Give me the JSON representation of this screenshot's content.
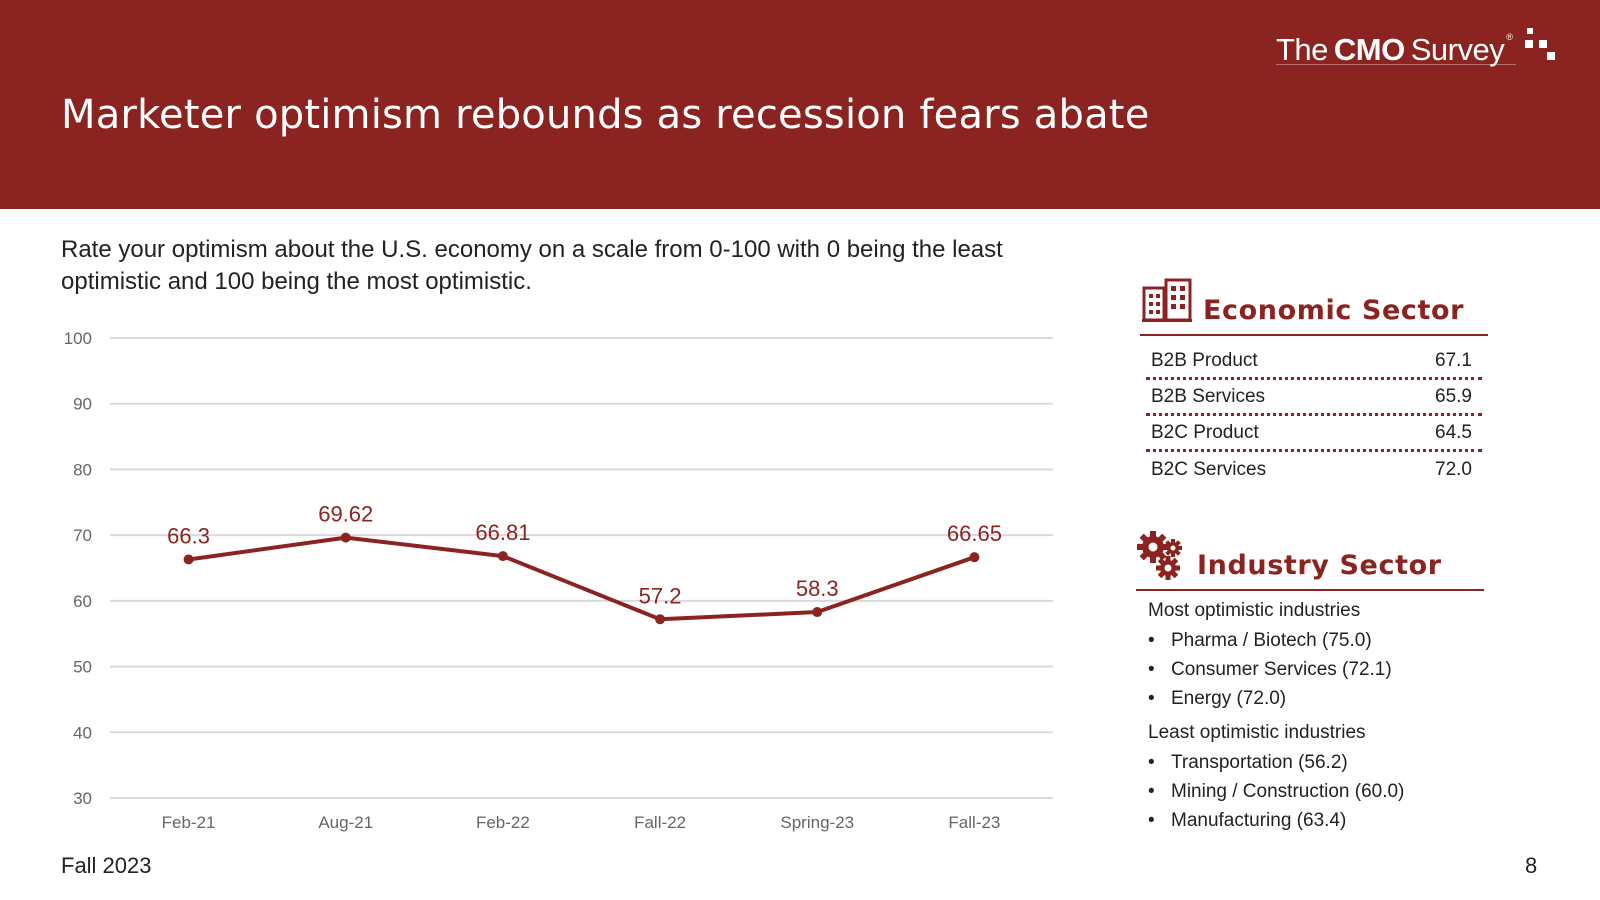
{
  "header": {
    "title": "Marketer optimism rebounds as recession fears abate",
    "logo": {
      "the": "The",
      "cmo": "CMO",
      "survey": "Survey",
      "mark": "®"
    }
  },
  "question": "Rate your optimism about the U.S. economy on a scale from 0-100 with 0 being the least optimistic and 100 being the most optimistic.",
  "chart_data": {
    "type": "line",
    "categories": [
      "Feb-21",
      "Aug-21",
      "Feb-22",
      "Fall-22",
      "Spring-23",
      "Fall-23"
    ],
    "series": [
      {
        "values": [
          66.3,
          69.62,
          66.81,
          57.2,
          58.3,
          66.65
        ],
        "labels": [
          "66.3",
          "69.62",
          "66.81",
          "57.2",
          "58.3",
          "66.65"
        ]
      }
    ],
    "ylim": [
      30,
      100
    ],
    "yticks": [
      100,
      90,
      80,
      70,
      60,
      50,
      40,
      30
    ],
    "grid": true,
    "line_color": "#8b2421",
    "grid_color": "#d9d9d9"
  },
  "economic_sector": {
    "title": "Economic Sector",
    "rows": [
      {
        "label": "B2B Product",
        "value": "67.1"
      },
      {
        "label": "B2B Services",
        "value": "65.9"
      },
      {
        "label": "B2C Product",
        "value": "64.5"
      },
      {
        "label": "B2C Services",
        "value": "72.0"
      }
    ]
  },
  "industry_sector": {
    "title": "Industry Sector",
    "most_heading": "Most optimistic industries",
    "most": [
      "Pharma / Biotech (75.0)",
      "Consumer Services (72.1)",
      "Energy (72.0)"
    ],
    "least_heading": "Least optimistic industries",
    "least": [
      "Transportation (56.2)",
      "Mining / Construction (60.0)",
      "Manufacturing (63.4)"
    ]
  },
  "footer": {
    "left": "Fall 2023",
    "page": "8"
  },
  "colors": {
    "brand": "#8b2421"
  }
}
